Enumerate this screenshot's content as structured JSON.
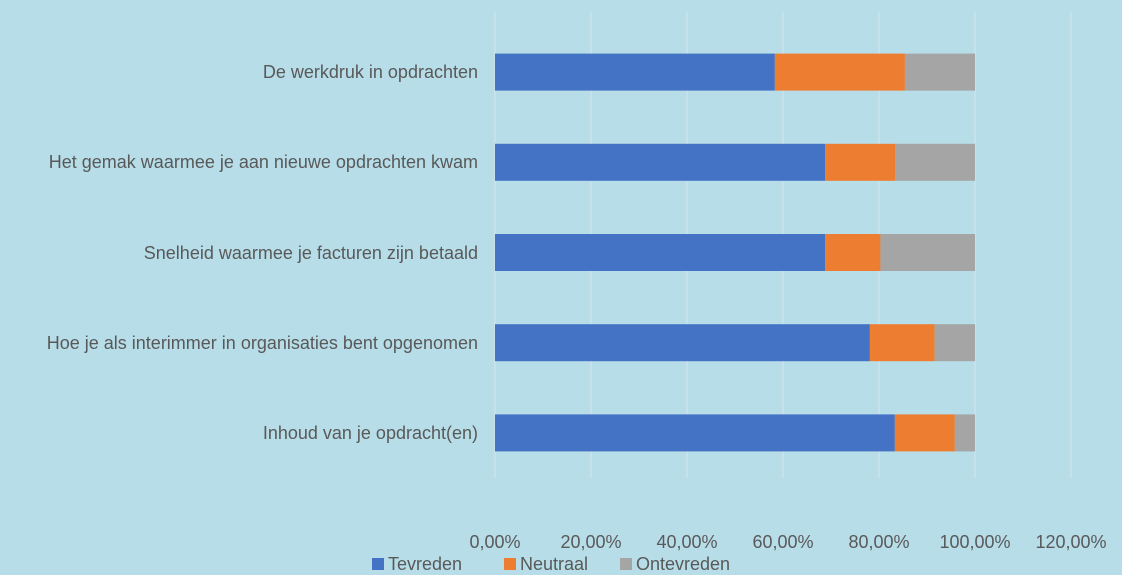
{
  "chart_data": {
    "type": "stacked_bar_horizontal",
    "categories": [
      "De werkdruk in opdrachten",
      "Het gemak waarmee je aan nieuwe opdrachten kwam",
      "Snelheid waarmee je facturen zijn betaald",
      "Hoe je als interimmer in organisaties bent opgenomen",
      "Inhoud van je opdracht(en)"
    ],
    "series": [
      {
        "name": "Tevreden",
        "color": "#4472c4",
        "values": [
          58.3,
          68.8,
          68.8,
          78.1,
          83.3
        ]
      },
      {
        "name": "Neutraal",
        "color": "#ed7d31",
        "values": [
          27.1,
          14.6,
          11.5,
          13.5,
          12.5
        ]
      },
      {
        "name": "Ontevreden",
        "color": "#a5a5a5",
        "values": [
          14.6,
          16.6,
          19.7,
          8.4,
          4.2
        ]
      }
    ],
    "xlim": [
      0,
      120
    ],
    "xticks": [
      {
        "value": 0,
        "label": "0,00%"
      },
      {
        "value": 20,
        "label": "20,00%"
      },
      {
        "value": 40,
        "label": "40,00%"
      },
      {
        "value": 60,
        "label": "60,00%"
      },
      {
        "value": 80,
        "label": "80,00%"
      },
      {
        "value": 100,
        "label": "100,00%"
      },
      {
        "value": 120,
        "label": "120,00%"
      }
    ],
    "grid": true,
    "legend": "bottom"
  }
}
